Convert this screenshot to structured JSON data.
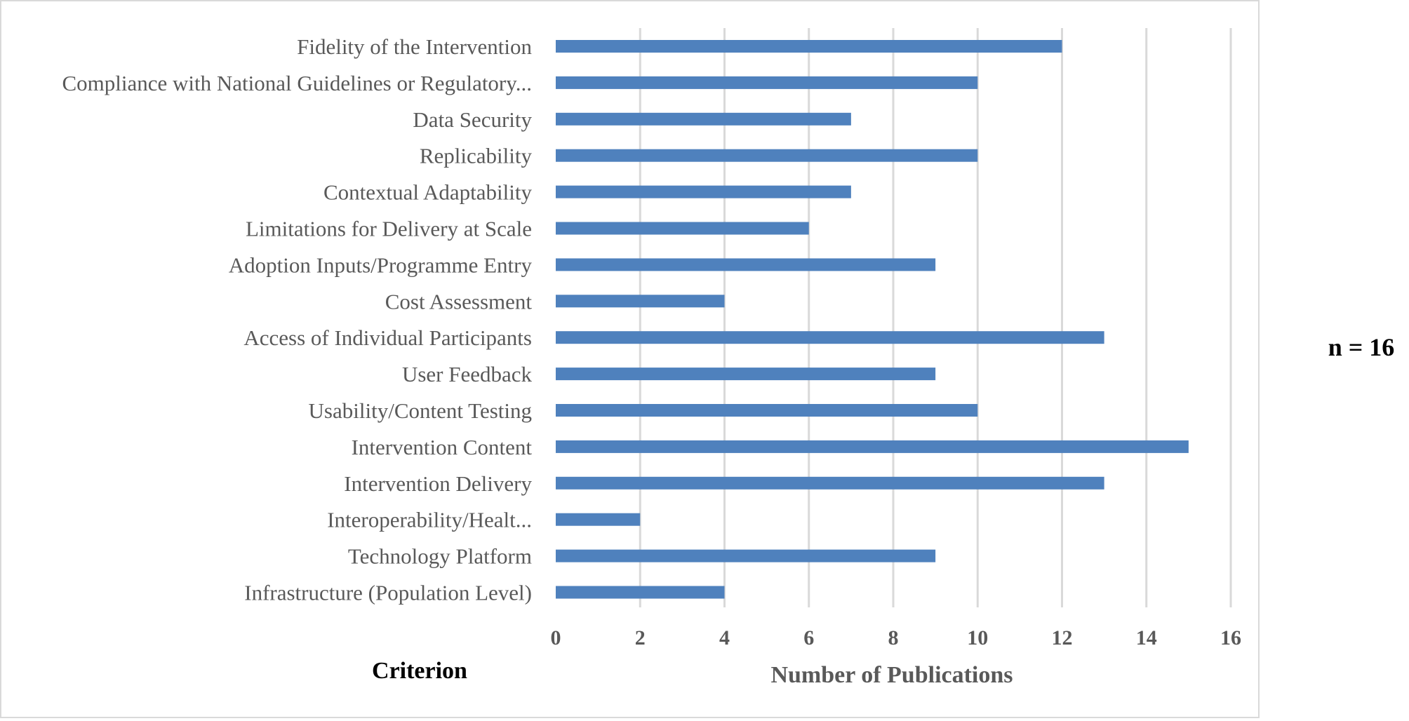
{
  "chart_data": {
    "type": "bar",
    "orientation": "horizontal",
    "categories": [
      "Fidelity of the Intervention",
      "Compliance with National Guidelines or Regulatory...",
      "Data Security",
      "Replicability",
      "Contextual Adaptability",
      "Limitations for Delivery at Scale",
      "Adoption Inputs/Programme Entry",
      "Cost Assessment",
      "Access of Individual Participants",
      "User Feedback",
      "Usability/Content Testing",
      "Intervention Content",
      "Intervention Delivery",
      "Interoperability/Healt...",
      "Technology Platform",
      "Infrastructure (Population Level)"
    ],
    "values": [
      12,
      10,
      7,
      10,
      7,
      6,
      9,
      4,
      13,
      9,
      10,
      15,
      13,
      2,
      9,
      4
    ],
    "xlabel": "Number of Publications",
    "ylabel": "Criterion",
    "xlim": [
      0,
      16
    ],
    "xticks": [
      0,
      2,
      4,
      6,
      8,
      10,
      12,
      14,
      16
    ],
    "grid": "vertical",
    "annotation": "n = 16",
    "colors": {
      "bar": "#4f81bd",
      "grid": "#d9d9d9",
      "text": "#595959"
    }
  }
}
